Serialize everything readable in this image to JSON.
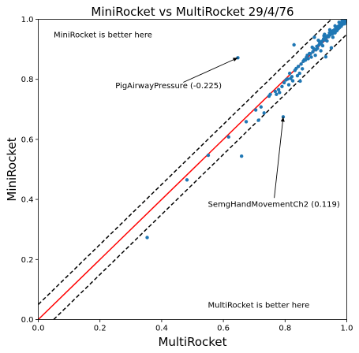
{
  "chart_data": {
    "type": "scatter",
    "title": "MiniRocket vs MultiRocket 29/4/76",
    "xlabel": "MultiRocket",
    "ylabel": "MiniRocket",
    "xlim": [
      0,
      1
    ],
    "ylim": [
      0,
      1
    ],
    "xticks": [
      "0.0",
      "0.2",
      "0.4",
      "0.6",
      "0.8",
      "1.0"
    ],
    "yticks": [
      "0.0",
      "0.2",
      "0.4",
      "0.6",
      "0.8",
      "1.0"
    ],
    "grid": false,
    "point_color": "#1f77b4",
    "diagonal_color": "#ff0000",
    "band_color": "#000000",
    "band_offset": 0.05,
    "region_labels": {
      "upper": "MiniRocket is better here",
      "lower": "MultiRocket is better here"
    },
    "annotations": [
      {
        "text": "PigAirwayPressure (-0.225)",
        "point": [
          0.647,
          0.872
        ],
        "text_pos": [
          0.25,
          0.77
        ]
      },
      {
        "text": "SemgHandMovementCh2 (0.119)",
        "point": [
          0.794,
          0.675
        ],
        "text_pos": [
          0.55,
          0.375
        ]
      }
    ],
    "points": [
      [
        0.353,
        0.273
      ],
      [
        0.482,
        0.465
      ],
      [
        0.551,
        0.547
      ],
      [
        0.617,
        0.608
      ],
      [
        0.647,
        0.872
      ],
      [
        0.659,
        0.544
      ],
      [
        0.674,
        0.659
      ],
      [
        0.705,
        0.698
      ],
      [
        0.714,
        0.664
      ],
      [
        0.722,
        0.708
      ],
      [
        0.732,
        0.688
      ],
      [
        0.748,
        0.744
      ],
      [
        0.752,
        0.75
      ],
      [
        0.768,
        0.76
      ],
      [
        0.772,
        0.75
      ],
      [
        0.779,
        0.766
      ],
      [
        0.782,
        0.756
      ],
      [
        0.79,
        0.776
      ],
      [
        0.794,
        0.675
      ],
      [
        0.797,
        0.789
      ],
      [
        0.803,
        0.798
      ],
      [
        0.808,
        0.801
      ],
      [
        0.812,
        0.782
      ],
      [
        0.815,
        0.82
      ],
      [
        0.818,
        0.803
      ],
      [
        0.822,
        0.809
      ],
      [
        0.825,
        0.795
      ],
      [
        0.829,
        0.915
      ],
      [
        0.832,
        0.83
      ],
      [
        0.836,
        0.836
      ],
      [
        0.84,
        0.812
      ],
      [
        0.843,
        0.843
      ],
      [
        0.847,
        0.82
      ],
      [
        0.849,
        0.794
      ],
      [
        0.852,
        0.851
      ],
      [
        0.856,
        0.835
      ],
      [
        0.859,
        0.86
      ],
      [
        0.862,
        0.865
      ],
      [
        0.866,
        0.864
      ],
      [
        0.869,
        0.873
      ],
      [
        0.872,
        0.88
      ],
      [
        0.875,
        0.869
      ],
      [
        0.879,
        0.886
      ],
      [
        0.882,
        0.885
      ],
      [
        0.885,
        0.874
      ],
      [
        0.888,
        0.907
      ],
      [
        0.89,
        0.892
      ],
      [
        0.893,
        0.902
      ],
      [
        0.895,
        0.94
      ],
      [
        0.898,
        0.88
      ],
      [
        0.9,
        0.898
      ],
      [
        0.903,
        0.91
      ],
      [
        0.905,
        0.903
      ],
      [
        0.908,
        0.93
      ],
      [
        0.91,
        0.915
      ],
      [
        0.913,
        0.918
      ],
      [
        0.916,
        0.895
      ],
      [
        0.918,
        0.922
      ],
      [
        0.92,
        0.927
      ],
      [
        0.922,
        0.912
      ],
      [
        0.925,
        0.935
      ],
      [
        0.928,
        0.95
      ],
      [
        0.93,
        0.931
      ],
      [
        0.932,
        0.875
      ],
      [
        0.934,
        0.94
      ],
      [
        0.936,
        0.928
      ],
      [
        0.938,
        0.945
      ],
      [
        0.941,
        0.942
      ],
      [
        0.944,
        0.955
      ],
      [
        0.946,
        0.948
      ],
      [
        0.948,
        0.951
      ],
      [
        0.95,
        0.905
      ],
      [
        0.952,
        0.96
      ],
      [
        0.954,
        0.952
      ],
      [
        0.956,
        0.962
      ],
      [
        0.958,
        0.958
      ],
      [
        0.96,
        0.965
      ],
      [
        0.962,
        0.955
      ],
      [
        0.964,
        0.968
      ],
      [
        0.966,
        0.97
      ],
      [
        0.968,
        0.962
      ],
      [
        0.97,
        0.975
      ],
      [
        0.972,
        0.968
      ],
      [
        0.974,
        0.978
      ],
      [
        0.976,
        0.972
      ],
      [
        0.978,
        0.98
      ],
      [
        0.98,
        0.985
      ],
      [
        0.982,
        0.977
      ],
      [
        0.984,
        0.988
      ],
      [
        0.986,
        0.983
      ],
      [
        0.988,
        0.99
      ],
      [
        0.99,
        0.986
      ],
      [
        0.992,
        0.994
      ],
      [
        0.994,
        0.991
      ],
      [
        0.996,
        0.997
      ],
      [
        0.998,
        0.996
      ],
      [
        0.999,
        0.999
      ],
      [
        0.985,
        0.995
      ],
      [
        0.975,
        0.99
      ],
      [
        0.993,
        0.985
      ],
      [
        0.945,
        0.965
      ],
      [
        0.926,
        0.945
      ],
      [
        0.962,
        0.978
      ],
      [
        0.912,
        0.925
      ],
      [
        0.955,
        0.94
      ]
    ]
  }
}
